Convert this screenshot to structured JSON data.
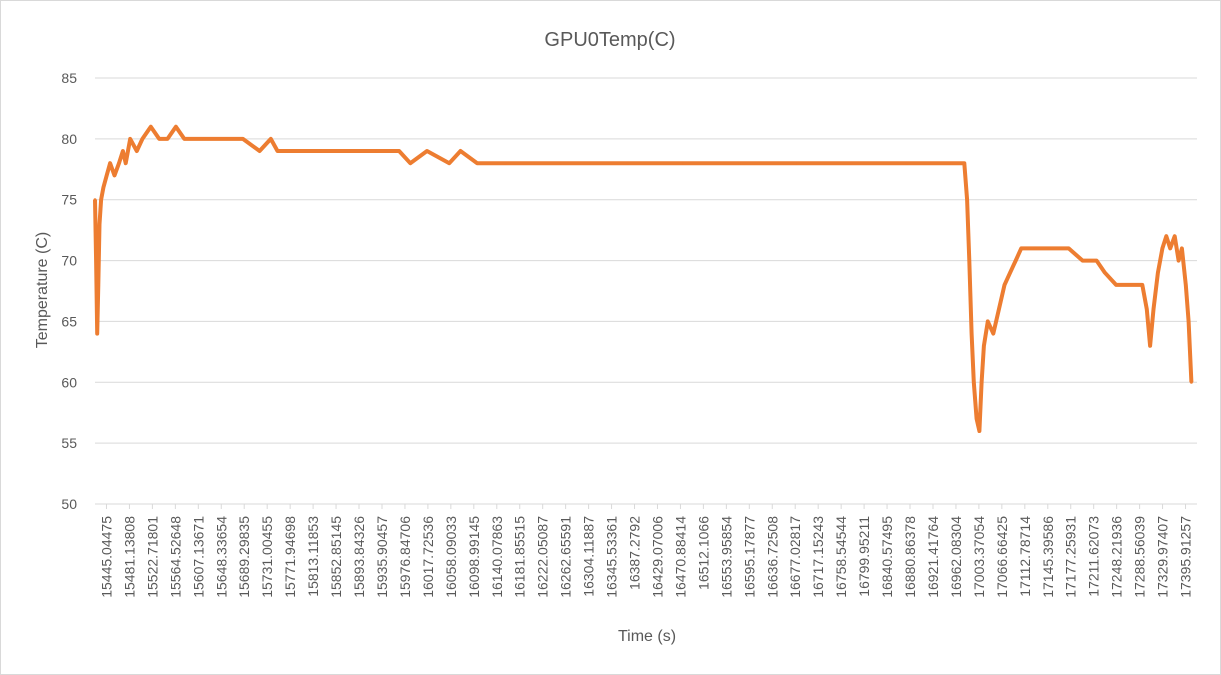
{
  "chart_data": {
    "type": "line",
    "title": "GPU0Temp(C)",
    "xlabel": "Time (s)",
    "ylabel": "Temperature (C)",
    "ylim": [
      50,
      85
    ],
    "y_ticks": [
      50,
      55,
      60,
      65,
      70,
      75,
      80,
      85
    ],
    "grid": true,
    "legend": "none",
    "series_color": "#ED7D31",
    "x_tick_labels": [
      "15445.04475",
      "15481.13808",
      "15522.71801",
      "15564.52648",
      "15607.13671",
      "15648.33654",
      "15689.29835",
      "15731.00455",
      "15771.94698",
      "15813.11853",
      "15852.85145",
      "15893.84326",
      "15935.90457",
      "15976.84706",
      "16017.72536",
      "16058.09033",
      "16098.99145",
      "16140.07863",
      "16181.85515",
      "16222.05087",
      "16262.65591",
      "16304.11887",
      "16345.53361",
      "16387.2792",
      "16429.07006",
      "16470.88414",
      "16512.1066",
      "16553.95854",
      "16595.17877",
      "16636.72508",
      "16677.02817",
      "16717.15243",
      "16758.54544",
      "16799.95211",
      "16840.57495",
      "16880.86378",
      "16921.41764",
      "16962.08304",
      "17003.37054",
      "17066.66425",
      "17112.78714",
      "17145.39586",
      "17177.25931",
      "17211.62073",
      "17248.21936",
      "17288.56039",
      "17329.97407",
      "17395.91257"
    ],
    "x_range": [
      15445,
      17420
    ],
    "series": [
      {
        "values_approx": [
          [
            15445,
            75
          ],
          [
            15447,
            70
          ],
          [
            15449,
            64
          ],
          [
            15451,
            68
          ],
          [
            15453,
            73
          ],
          [
            15456,
            75
          ],
          [
            15460,
            76
          ],
          [
            15466,
            77
          ],
          [
            15472,
            78
          ],
          [
            15480,
            77
          ],
          [
            15488,
            78
          ],
          [
            15495,
            79
          ],
          [
            15500,
            78
          ],
          [
            15508,
            80
          ],
          [
            15520,
            79
          ],
          [
            15530,
            80
          ],
          [
            15545,
            81
          ],
          [
            15560,
            80
          ],
          [
            15575,
            80
          ],
          [
            15590,
            81
          ],
          [
            15605,
            80
          ],
          [
            15640,
            80
          ],
          [
            15680,
            80
          ],
          [
            15710,
            80
          ],
          [
            15740,
            79
          ],
          [
            15760,
            80
          ],
          [
            15772,
            79
          ],
          [
            15800,
            79
          ],
          [
            15850,
            79
          ],
          [
            15900,
            79
          ],
          [
            15950,
            79
          ],
          [
            15990,
            79
          ],
          [
            16010,
            78
          ],
          [
            16040,
            79
          ],
          [
            16080,
            78
          ],
          [
            16100,
            79
          ],
          [
            16130,
            78
          ],
          [
            16180,
            78
          ],
          [
            16230,
            78
          ],
          [
            16280,
            78
          ],
          [
            16330,
            78
          ],
          [
            16400,
            78
          ],
          [
            16500,
            78
          ],
          [
            16600,
            78
          ],
          [
            16700,
            78
          ],
          [
            16800,
            78
          ],
          [
            16900,
            78
          ],
          [
            16980,
            78
          ],
          [
            17003,
            78
          ],
          [
            17008,
            75
          ],
          [
            17012,
            70
          ],
          [
            17016,
            64
          ],
          [
            17020,
            60
          ],
          [
            17025,
            57
          ],
          [
            17030,
            56
          ],
          [
            17034,
            60
          ],
          [
            17038,
            63
          ],
          [
            17045,
            65
          ],
          [
            17055,
            64
          ],
          [
            17065,
            66
          ],
          [
            17075,
            68
          ],
          [
            17085,
            69
          ],
          [
            17095,
            70
          ],
          [
            17105,
            71
          ],
          [
            17130,
            71
          ],
          [
            17160,
            71
          ],
          [
            17190,
            71
          ],
          [
            17215,
            70
          ],
          [
            17240,
            70
          ],
          [
            17255,
            69
          ],
          [
            17275,
            68
          ],
          [
            17300,
            68
          ],
          [
            17322,
            68
          ],
          [
            17330,
            66
          ],
          [
            17336,
            63
          ],
          [
            17342,
            66
          ],
          [
            17350,
            69
          ],
          [
            17358,
            71
          ],
          [
            17365,
            72
          ],
          [
            17372,
            71
          ],
          [
            17380,
            72
          ],
          [
            17387,
            70
          ],
          [
            17393,
            71
          ],
          [
            17400,
            68
          ],
          [
            17405,
            65
          ],
          [
            17410,
            60
          ]
        ]
      }
    ]
  }
}
